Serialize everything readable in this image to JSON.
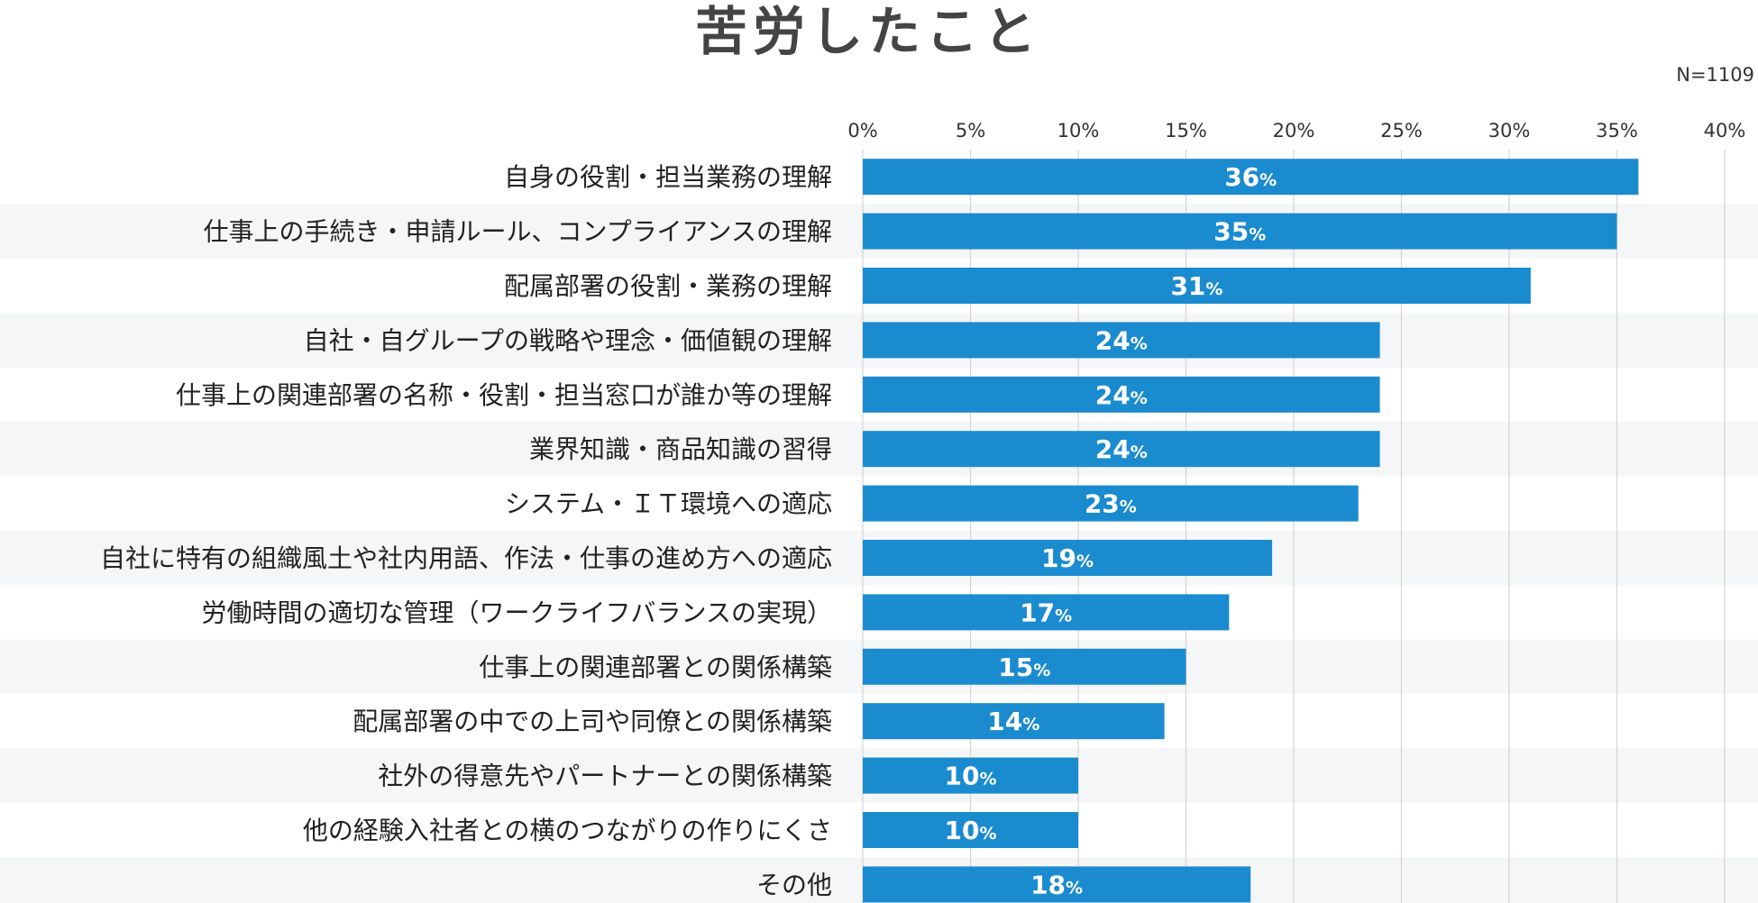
{
  "chart_data": {
    "type": "bar",
    "orientation": "horizontal",
    "title": "苦労したこと",
    "note": "N=1109",
    "xlim": [
      0,
      40
    ],
    "tick_step": 5,
    "tick_suffix": "%",
    "value_suffix": "%",
    "grid": true,
    "legend": "none",
    "colors": {
      "bar": "#1b8bd0",
      "grid": "#d4d4d4",
      "stripe": "#f4f6f7",
      "title": "#444444",
      "label": "#222222",
      "value": "#ffffff"
    },
    "categories": [
      "自身の役割・担当業務の理解",
      "仕事上の手続き・申請ルール、コンプライアンスの理解",
      "配属部署の役割・業務の理解",
      "自社・自グループの戦略や理念・価値観の理解",
      "仕事上の関連部署の名称・役割・担当窓口が誰か等の理解",
      "業界知識・商品知識の習得",
      "システム・ＩＴ環境への適応",
      "自社に特有の組織風土や社内用語、作法・仕事の進め方への適応",
      "労働時間の適切な管理（ワークライフバランスの実現）",
      "仕事上の関連部署との関係構築",
      "配属部署の中での上司や同僚との関係構築",
      "社外の得意先やパートナーとの関係構築",
      "他の経験入社者との横のつながりの作りにくさ",
      "その他"
    ],
    "values": [
      36,
      35,
      31,
      24,
      24,
      24,
      23,
      19,
      17,
      15,
      14,
      10,
      10,
      18
    ]
  }
}
